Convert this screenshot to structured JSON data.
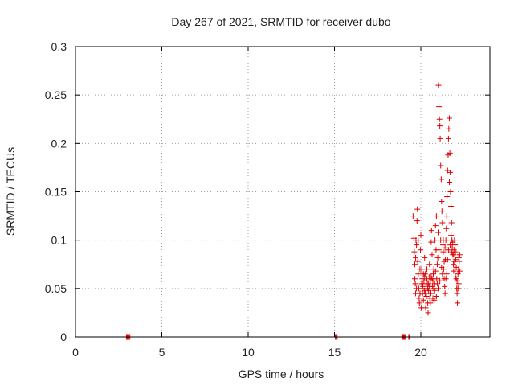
{
  "chart_data": {
    "type": "scatter",
    "title": "Day 267 of 2021, SRMTID for receiver dubo",
    "xlabel": "GPS time / hours",
    "ylabel": "SRMTID / TECUs",
    "xlim": [
      0,
      24
    ],
    "ylim": [
      0,
      0.3
    ],
    "x_ticks": [
      0,
      5,
      10,
      15,
      20
    ],
    "y_ticks": [
      0,
      0.05,
      0.1,
      0.15,
      0.2,
      0.25,
      0.3
    ],
    "x_tick_labels": [
      "0",
      "5",
      "10",
      "15",
      "20"
    ],
    "y_tick_labels": [
      "0",
      "0.05",
      "0.1",
      "0.15",
      "0.2",
      "0.25",
      "0.3"
    ],
    "grid": true,
    "marker": "+",
    "color": "#dd0000",
    "series": [
      {
        "name": "SRMTID",
        "points": [
          [
            2.95,
            0
          ],
          [
            3.0,
            0
          ],
          [
            3.05,
            0
          ],
          [
            3.1,
            0
          ],
          [
            3.15,
            0
          ],
          [
            15.05,
            0
          ],
          [
            15.1,
            0
          ],
          [
            15.15,
            0
          ],
          [
            18.9,
            0
          ],
          [
            18.95,
            0
          ],
          [
            19.0,
            0
          ],
          [
            19.05,
            0
          ],
          [
            19.1,
            0
          ],
          [
            19.3,
            0
          ],
          [
            19.35,
            0
          ],
          [
            19.55,
            0.125
          ],
          [
            19.6,
            0.102
          ],
          [
            19.62,
            0.088
          ],
          [
            19.65,
            0.06
          ],
          [
            19.68,
            0.055
          ],
          [
            19.7,
            0.045
          ],
          [
            19.72,
            0.1
          ],
          [
            19.75,
            0.095
          ],
          [
            19.78,
            0.12
          ],
          [
            19.8,
            0.132
          ],
          [
            19.82,
            0.078
          ],
          [
            19.85,
            0.065
          ],
          [
            19.88,
            0.05
          ],
          [
            19.9,
            0.04
          ],
          [
            19.92,
            0.035
          ],
          [
            19.95,
            0.07
          ],
          [
            19.98,
            0.09
          ],
          [
            20.0,
            0.105
          ],
          [
            20.02,
            0.03
          ],
          [
            20.05,
            0.055
          ],
          [
            20.08,
            0.06
          ],
          [
            20.1,
            0.045
          ],
          [
            20.12,
            0.052
          ],
          [
            20.15,
            0.038
          ],
          [
            20.18,
            0.058
          ],
          [
            20.2,
            0.048
          ],
          [
            20.22,
            0.082
          ],
          [
            20.25,
            0.065
          ],
          [
            20.28,
            0.03
          ],
          [
            20.3,
            0.05
          ],
          [
            20.32,
            0.042
          ],
          [
            20.35,
            0.06
          ],
          [
            20.38,
            0.055
          ],
          [
            20.4,
            0.035
          ],
          [
            20.42,
            0.025
          ],
          [
            20.45,
            0.048
          ],
          [
            20.48,
            0.062
          ],
          [
            20.5,
            0.075
          ],
          [
            20.52,
            0.04
          ],
          [
            20.55,
            0.058
          ],
          [
            20.58,
            0.045
          ],
          [
            20.6,
            0.098
          ],
          [
            20.62,
            0.11
          ],
          [
            20.65,
            0.085
          ],
          [
            20.68,
            0.052
          ],
          [
            20.7,
            0.04
          ],
          [
            20.72,
            0.065
          ],
          [
            20.75,
            0.07
          ],
          [
            20.78,
            0.038
          ],
          [
            20.8,
            0.055
          ],
          [
            20.82,
            0.1
          ],
          [
            20.85,
            0.115
          ],
          [
            20.88,
            0.09
          ],
          [
            20.9,
            0.125
          ],
          [
            20.92,
            0.06
          ],
          [
            20.95,
            0.075
          ],
          [
            20.98,
            0.082
          ],
          [
            21.0,
            0.108
          ],
          [
            21.02,
            0.26
          ],
          [
            21.05,
            0.238
          ],
          [
            21.08,
            0.225
          ],
          [
            21.1,
            0.218
          ],
          [
            21.12,
            0.205
          ],
          [
            21.15,
            0.177
          ],
          [
            21.18,
            0.163
          ],
          [
            21.2,
            0.14
          ],
          [
            21.22,
            0.13
          ],
          [
            21.25,
            0.118
          ],
          [
            21.28,
            0.095
          ],
          [
            21.3,
            0.088
          ],
          [
            21.32,
            0.07
          ],
          [
            21.35,
            0.06
          ],
          [
            21.38,
            0.052
          ],
          [
            21.4,
            0.045
          ],
          [
            21.42,
            0.08
          ],
          [
            21.45,
            0.1
          ],
          [
            21.48,
            0.112
          ],
          [
            21.5,
            0.125
          ],
          [
            21.52,
            0.145
          ],
          [
            21.55,
            0.172
          ],
          [
            21.58,
            0.188
          ],
          [
            21.6,
            0.205
          ],
          [
            21.62,
            0.215
          ],
          [
            21.65,
            0.226
          ],
          [
            21.68,
            0.19
          ],
          [
            21.7,
            0.17
          ],
          [
            21.72,
            0.15
          ],
          [
            21.75,
            0.135
          ],
          [
            21.78,
            0.118
          ],
          [
            21.8,
            0.1
          ],
          [
            21.82,
            0.092
          ],
          [
            21.85,
            0.085
          ],
          [
            21.88,
            0.075
          ],
          [
            21.9,
            0.068
          ],
          [
            21.92,
            0.09
          ],
          [
            21.95,
            0.1
          ],
          [
            21.98,
            0.095
          ],
          [
            22.0,
            0.088
          ],
          [
            22.02,
            0.08
          ],
          [
            22.05,
            0.06
          ],
          [
            22.08,
            0.05
          ],
          [
            22.1,
            0.045
          ],
          [
            22.12,
            0.035
          ],
          [
            22.15,
            0.065
          ],
          [
            22.18,
            0.07
          ],
          [
            22.2,
            0.082
          ],
          [
            22.22,
            0.078
          ],
          [
            22.25,
            0.085
          ],
          [
            19.65,
            0.075
          ],
          [
            19.7,
            0.082
          ],
          [
            19.75,
            0.05
          ],
          [
            19.85,
            0.1
          ],
          [
            19.95,
            0.045
          ],
          [
            20.05,
            0.07
          ],
          [
            20.15,
            0.065
          ],
          [
            20.25,
            0.045
          ],
          [
            20.35,
            0.07
          ],
          [
            20.45,
            0.055
          ],
          [
            20.55,
            0.035
          ],
          [
            20.65,
            0.06
          ],
          [
            20.75,
            0.05
          ],
          [
            20.85,
            0.068
          ],
          [
            20.95,
            0.055
          ],
          [
            21.05,
            0.09
          ],
          [
            21.15,
            0.1
          ],
          [
            21.25,
            0.065
          ],
          [
            21.35,
            0.078
          ],
          [
            21.45,
            0.06
          ],
          [
            21.55,
            0.08
          ],
          [
            21.65,
            0.16
          ],
          [
            21.75,
            0.105
          ],
          [
            21.85,
            0.098
          ],
          [
            21.95,
            0.078
          ],
          [
            22.05,
            0.072
          ],
          [
            22.15,
            0.05
          ],
          [
            22.25,
            0.068
          ],
          [
            20.1,
            0.055
          ],
          [
            20.2,
            0.062
          ],
          [
            20.3,
            0.058
          ],
          [
            20.4,
            0.05
          ],
          [
            20.5,
            0.052
          ],
          [
            20.6,
            0.062
          ],
          [
            20.7,
            0.058
          ],
          [
            20.8,
            0.048
          ],
          [
            20.9,
            0.042
          ],
          [
            21.0,
            0.05
          ],
          [
            21.1,
            0.058
          ],
          [
            21.2,
            0.072
          ],
          [
            21.3,
            0.1
          ],
          [
            21.4,
            0.092
          ],
          [
            21.5,
            0.065
          ],
          [
            21.6,
            0.09
          ],
          [
            21.7,
            0.095
          ],
          [
            21.8,
            0.088
          ],
          [
            21.9,
            0.085
          ],
          [
            22.0,
            0.062
          ],
          [
            22.1,
            0.058
          ],
          [
            22.2,
            0.055
          ]
        ]
      }
    ]
  }
}
